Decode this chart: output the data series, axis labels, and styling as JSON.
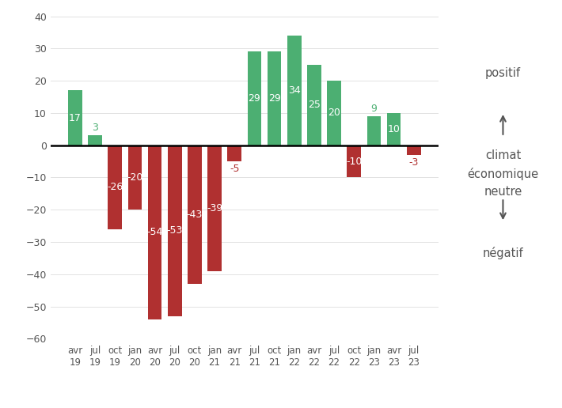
{
  "categories": [
    "avr\n19",
    "jul\n19",
    "oct\n19",
    "jan\n20",
    "avr\n20",
    "jul\n20",
    "oct\n20",
    "jan\n21",
    "avr\n21",
    "jul\n21",
    "oct\n21",
    "jan\n22",
    "avr\n22",
    "jul\n22",
    "oct\n22",
    "jan\n23",
    "avr\n23",
    "jul\n23"
  ],
  "values": [
    17,
    3,
    -26,
    -20,
    -54,
    -53,
    -43,
    -39,
    -5,
    29,
    29,
    34,
    25,
    20,
    -10,
    9,
    10,
    -3
  ],
  "positive_color": "#4CAF72",
  "negative_color": "#B03030",
  "background_color": "#ffffff",
  "ylim": [
    -60,
    40
  ],
  "yticks": [
    -60,
    -50,
    -40,
    -30,
    -20,
    -10,
    0,
    10,
    20,
    30,
    40
  ],
  "label_pos_text": "positif",
  "label_mid_text": "climat\néconomique\nneutre",
  "label_neg_text": "négatif",
  "text_color": "#555555"
}
